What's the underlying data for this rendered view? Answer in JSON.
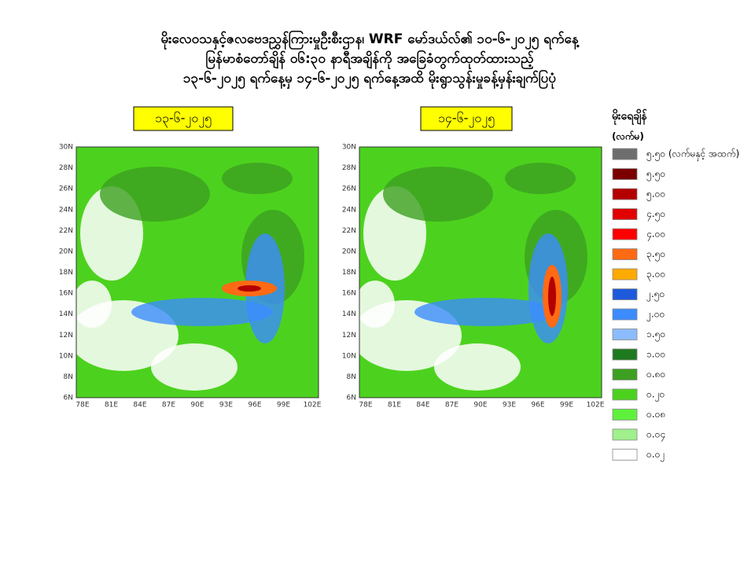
{
  "title": [
    "မိုးလေဝသနှင့်ဇလဗေဒညွှန်ကြားမှုဦးစီးဌာန၊ WRF မော်ဒယ်လ်၏ ၁၀-၆-၂၀၂၅ ရက်နေ့",
    "မြန်မာစံတော်ချိန် ၀၆:၃၀ နာရီအချိန်ကို အခြေခံတွက်ထုတ်ထားသည့်",
    "၁၃-၆-၂၀၂၅ ရက်နေ့မှ ၁၄-၆-၂၀၂၅ ရက်နေ့အထိ မိုးရွာသွန်းမှုခန့်မှန်းချက်ပြပုံ"
  ],
  "panels": [
    {
      "label": "၁၃-၆-၂၀၂၅"
    },
    {
      "label": "၁၄-၆-၂၀၂၅"
    }
  ],
  "map_axes": {
    "lat_ticks": [
      "30N",
      "28N",
      "26N",
      "24N",
      "22N",
      "20N",
      "18N",
      "16N",
      "14N",
      "12N",
      "10N",
      "8N",
      "6N"
    ],
    "lon_ticks": [
      "78E",
      "81E",
      "84E",
      "87E",
      "90E",
      "93E",
      "96E",
      "99E",
      "102E"
    ]
  },
  "legend": {
    "title": "မိုးရေချိန်",
    "unit": "(လက်မ)",
    "entries": [
      {
        "label": "၅.၅၀ (လက်မနှင့် အထက်)",
        "color": "#6e6e6e"
      },
      {
        "label": "၅.၅၀",
        "color": "#7a0000"
      },
      {
        "label": "၅.၀၀",
        "color": "#b40000"
      },
      {
        "label": "၄.၅၀",
        "color": "#e00000"
      },
      {
        "label": "၄.၀၀",
        "color": "#ff0000"
      },
      {
        "label": "၃.၅၀",
        "color": "#ff6a14"
      },
      {
        "label": "၃.၀၀",
        "color": "#ffaa00"
      },
      {
        "label": "၂.၅၀",
        "color": "#1e5adc"
      },
      {
        "label": "၂.၀၀",
        "color": "#3c8cff"
      },
      {
        "label": "၁.၅၀",
        "color": "#8cbcff"
      },
      {
        "label": "၁.၀၀",
        "color": "#1e7a1e"
      },
      {
        "label": "၀.၈၀",
        "color": "#3ca020"
      },
      {
        "label": "၀.၂၀",
        "color": "#4cd21e"
      },
      {
        "label": "၀.၀၈",
        "color": "#5ff03c"
      },
      {
        "label": "၀.၀၄",
        "color": "#a0f08c"
      },
      {
        "label": "၀.၀၂",
        "color": "#ffffff"
      }
    ]
  }
}
